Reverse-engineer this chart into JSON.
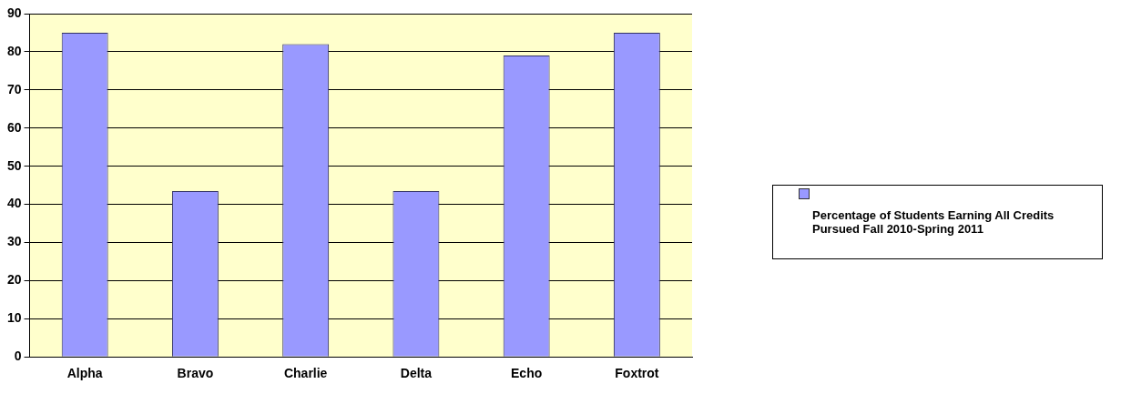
{
  "chart_data": {
    "type": "bar",
    "categories": [
      "Alpha",
      "Bravo",
      "Charlie",
      "Delta",
      "Echo",
      "Foxtrot"
    ],
    "series": [
      {
        "name": "Percentage of Students Earning All Credits Pursued Fall 2010-Spring 2011",
        "color": "#9999ff",
        "values": [
          85,
          43.5,
          82,
          43.5,
          79,
          85
        ]
      }
    ],
    "ylim": [
      0,
      90
    ],
    "yticks": [
      0,
      10,
      20,
      30,
      40,
      50,
      60,
      70,
      80,
      90
    ],
    "grid": "y",
    "legend": "right"
  }
}
